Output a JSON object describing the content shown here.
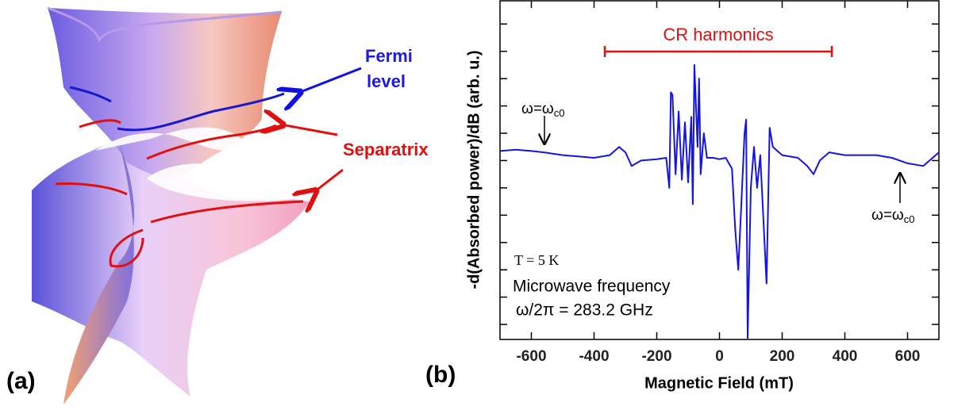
{
  "panel_labels": [
    "(a)",
    "(b)"
  ],
  "surface_annotations": {
    "fermi": [
      "Fermi",
      "level"
    ],
    "separatrix": "Separatrix"
  },
  "chart_data": {
    "type": "line",
    "xlabel": "Magnetic Field (mT)",
    "ylabel": "-d(Absorbed power)/dB (arb. u.)",
    "annotations": {
      "harmonics": "CR harmonics",
      "omega": "ω=ω",
      "omega_sub": "c0",
      "temperature": "T = 5 K",
      "frequency_label": "Microwave frequency",
      "frequency_value": "ω/2π = 283.2 GHz"
    },
    "xlim": [
      -700,
      700
    ],
    "xticks": [
      -600,
      -400,
      -200,
      0,
      200,
      400,
      600
    ],
    "ylim": [
      -6.55,
      5.85
    ],
    "yticks": [
      -6,
      -5,
      -4,
      -3,
      -2,
      -1,
      0,
      1,
      2,
      3,
      4,
      5
    ],
    "color": "#1414e6",
    "x": [
      -700,
      -650,
      -600,
      -560,
      -500,
      -450,
      -400,
      -350,
      -320,
      -300,
      -280,
      -250,
      -200,
      -170,
      -160,
      -155,
      -150,
      -140,
      -130,
      -120,
      -110,
      -100,
      -90,
      -85,
      -80,
      -70,
      -65,
      -60,
      -50,
      -40,
      -20,
      0,
      20,
      40,
      50,
      60,
      70,
      80,
      85,
      90,
      100,
      110,
      120,
      130,
      150,
      160,
      170,
      200,
      250,
      280,
      300,
      320,
      350,
      400,
      500,
      550,
      600,
      650,
      700
    ],
    "values": [
      0.35,
      0.4,
      0.35,
      0.3,
      0.2,
      0.15,
      0.1,
      0.2,
      0.5,
      0.3,
      -0.2,
      0.0,
      0.05,
      0.1,
      -1.0,
      2.5,
      2.4,
      -0.5,
      1.8,
      -0.7,
      1.4,
      -0.8,
      1.6,
      -1.6,
      3.5,
      0.5,
      3.0,
      -0.5,
      1.0,
      0.1,
      0.1,
      0.05,
      0.1,
      -0.3,
      -2.5,
      -4.0,
      -1.5,
      1.0,
      1.5,
      -6.5,
      -1.0,
      0.5,
      -1.0,
      0.2,
      -4.5,
      1.2,
      0.5,
      0.2,
      0.1,
      -0.2,
      -0.5,
      0.0,
      0.3,
      0.2,
      0.2,
      0.1,
      -0.1,
      -0.2,
      0.3
    ]
  }
}
